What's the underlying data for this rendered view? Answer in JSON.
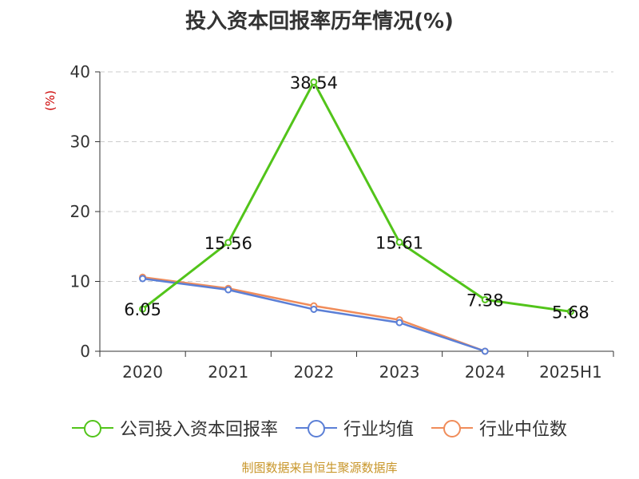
{
  "chart_data": {
    "type": "line",
    "title": "投入资本回报率历年情况(%)",
    "ylabel": "(%)",
    "xlabel": "",
    "categories": [
      "2020",
      "2021",
      "2022",
      "2023",
      "2024",
      "2025H1"
    ],
    "ylim": [
      0,
      40
    ],
    "yticks": [
      0,
      10,
      20,
      30,
      40
    ],
    "grid": true,
    "legend_position": "bottom",
    "series": [
      {
        "name": "公司投入资本回报率",
        "color": "#52c41a",
        "values": [
          6.05,
          15.56,
          38.54,
          15.61,
          7.38,
          5.68
        ],
        "labels": [
          "6.05",
          "15.56",
          "38.54",
          "15.61",
          "7.38",
          "5.68"
        ]
      },
      {
        "name": "行业均值",
        "color": "#5b7fd6",
        "values": [
          10.4,
          8.8,
          6.0,
          4.1,
          0.0,
          null
        ]
      },
      {
        "name": "行业中位数",
        "color": "#f08c5a",
        "values": [
          10.6,
          9.0,
          6.5,
          4.5,
          0.0,
          null
        ]
      }
    ]
  },
  "footer": {
    "source": "制图数据来自恒生聚源数据库"
  }
}
